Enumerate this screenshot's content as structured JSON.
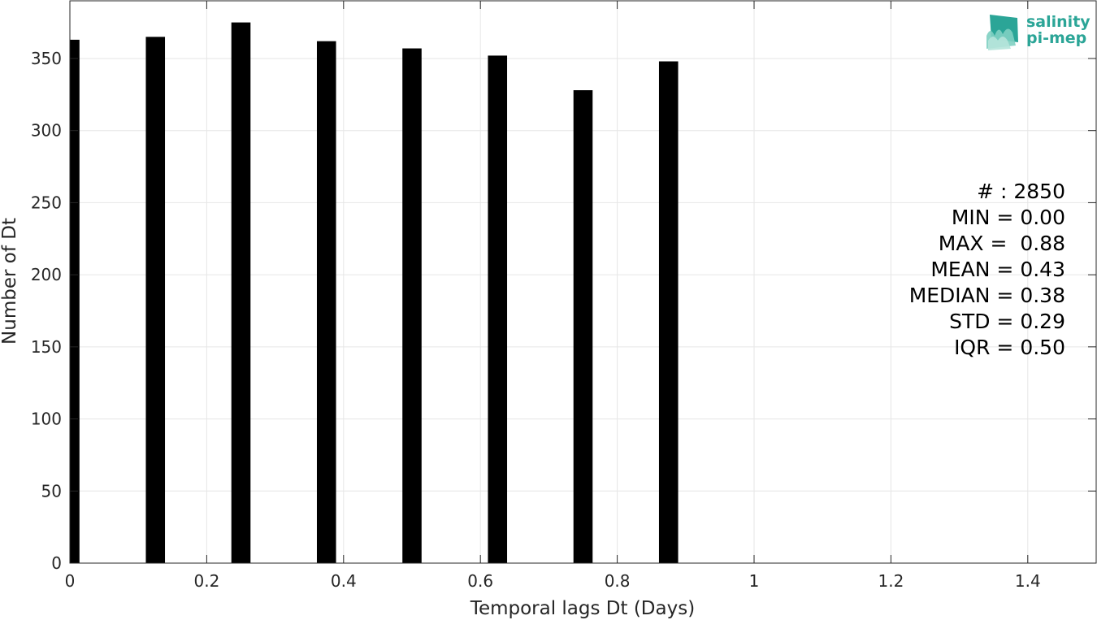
{
  "chart_data": {
    "type": "bar",
    "title": "",
    "xlabel": "Temporal lags Dt (Days)",
    "ylabel": "Number of Dt",
    "xlim": [
      0,
      1.5
    ],
    "ylim": [
      0,
      390
    ],
    "x_ticks": [
      0,
      0.2,
      0.4,
      0.6,
      0.8,
      1,
      1.2,
      1.4
    ],
    "x_tick_labels": [
      "0",
      "0.2",
      "0.4",
      "0.6",
      "0.8",
      "1",
      "1.2",
      "1.4"
    ],
    "y_ticks": [
      0,
      50,
      100,
      150,
      200,
      250,
      300,
      350
    ],
    "y_tick_labels": [
      "0",
      "50",
      "100",
      "150",
      "200",
      "250",
      "300",
      "350"
    ],
    "grid": true,
    "bar_color": "#000000",
    "bar_width": 0.028,
    "x": [
      0.0,
      0.125,
      0.25,
      0.375,
      0.5,
      0.625,
      0.75,
      0.875
    ],
    "values": [
      363,
      365,
      375,
      362,
      357,
      352,
      328,
      348
    ]
  },
  "stats": [
    "# : 2850",
    "MIN = 0.00",
    "MAX =  0.88",
    "MEAN = 0.43",
    "MEDIAN = 0.38",
    "STD = 0.29",
    "IQR = 0.50"
  ],
  "logo": {
    "line1": "salinity",
    "line2": "pi-mep",
    "color": "#2ba597"
  }
}
